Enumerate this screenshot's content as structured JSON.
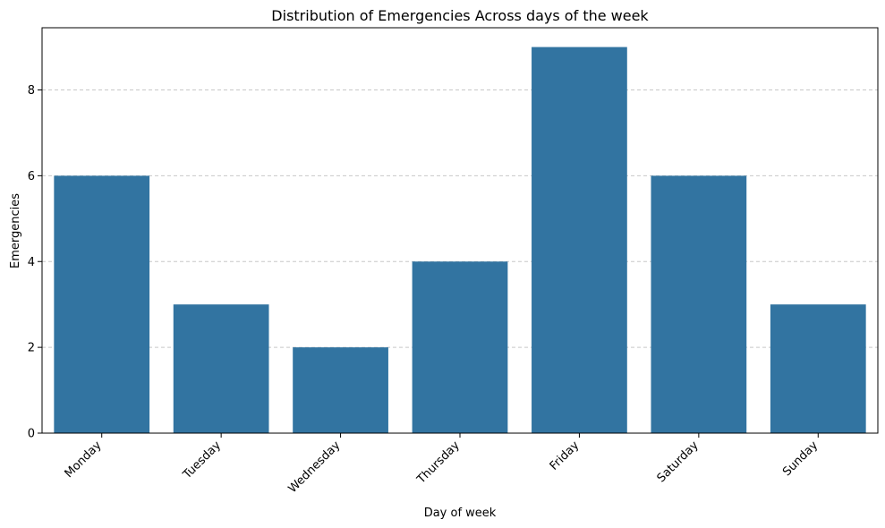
{
  "chart_data": {
    "type": "bar",
    "title": "Distribution of Emergencies Across days of the week",
    "xlabel": "Day of week",
    "ylabel": "Emergencies",
    "categories": [
      "Monday",
      "Tuesday",
      "Wednesday",
      "Thursday",
      "Friday",
      "Saturday",
      "Sunday"
    ],
    "values": [
      6,
      3,
      2,
      4,
      9,
      6,
      3
    ],
    "ylim": [
      0,
      9.45
    ],
    "yticks": [
      0,
      2,
      4,
      6,
      8
    ],
    "grid": "y-dashed",
    "bar_color": "#3274a1",
    "grid_color": "#c8c8c8",
    "legend": "none"
  }
}
